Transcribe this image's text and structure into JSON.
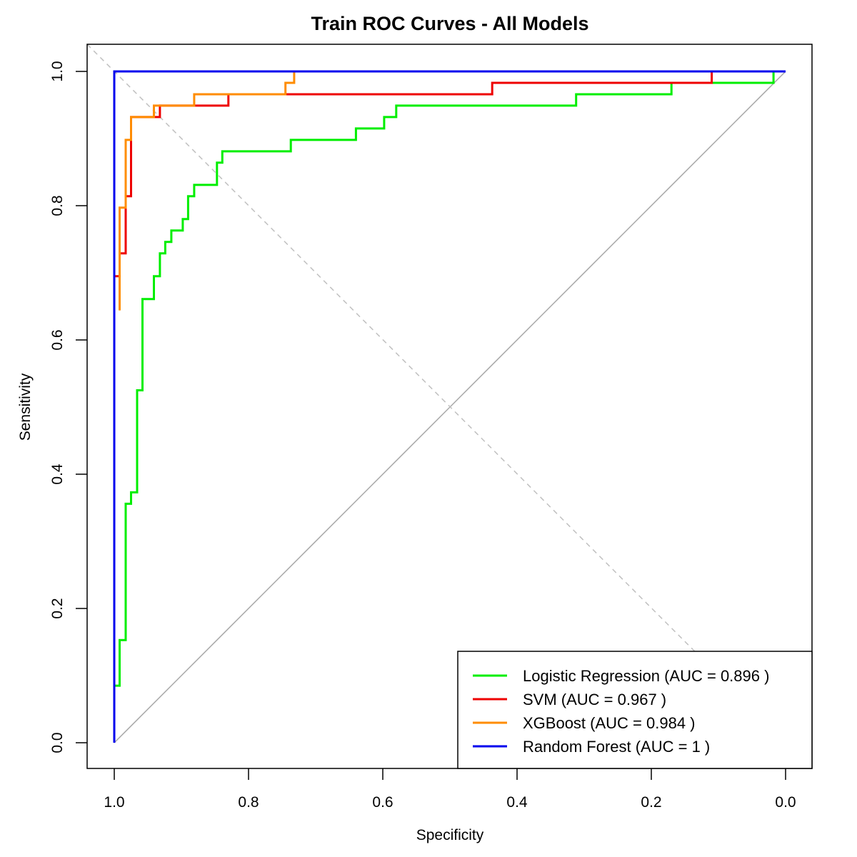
{
  "chart_data": {
    "type": "line",
    "title": "Train ROC Curves - All Models",
    "xlabel": "Specificity",
    "ylabel": "Sensitivity",
    "xlim": [
      1.0,
      0.0
    ],
    "ylim": [
      0.0,
      1.0
    ],
    "x_reversed": true,
    "xticks": [
      1.0,
      0.8,
      0.6,
      0.4,
      0.2,
      0.0
    ],
    "yticks": [
      0.0,
      0.2,
      0.4,
      0.6,
      0.8,
      1.0
    ],
    "xtick_labels": [
      "1.0",
      "0.8",
      "0.6",
      "0.4",
      "0.2",
      "0.0"
    ],
    "ytick_labels": [
      "0.0",
      "0.2",
      "0.4",
      "0.6",
      "0.8",
      "1.0"
    ],
    "grid": false,
    "legend_position": "bottom-right",
    "reference_line": {
      "points": [
        [
          1.0,
          0.0
        ],
        [
          0.0,
          1.0
        ]
      ],
      "color": "#a6a6a6"
    },
    "series": [
      {
        "name": "Logistic Regression (AUC = 0.896 )",
        "color": "#00ee00",
        "points": [
          [
            1.0,
            0.0
          ],
          [
            1.0,
            0.085
          ],
          [
            0.992,
            0.085
          ],
          [
            0.992,
            0.153
          ],
          [
            0.983,
            0.153
          ],
          [
            0.983,
            0.356
          ],
          [
            0.975,
            0.356
          ],
          [
            0.975,
            0.373
          ],
          [
            0.966,
            0.373
          ],
          [
            0.966,
            0.525
          ],
          [
            0.958,
            0.525
          ],
          [
            0.958,
            0.661
          ],
          [
            0.941,
            0.661
          ],
          [
            0.941,
            0.695
          ],
          [
            0.932,
            0.695
          ],
          [
            0.932,
            0.729
          ],
          [
            0.924,
            0.729
          ],
          [
            0.924,
            0.746
          ],
          [
            0.915,
            0.746
          ],
          [
            0.915,
            0.763
          ],
          [
            0.898,
            0.763
          ],
          [
            0.898,
            0.78
          ],
          [
            0.89,
            0.78
          ],
          [
            0.89,
            0.814
          ],
          [
            0.881,
            0.814
          ],
          [
            0.881,
            0.831
          ],
          [
            0.847,
            0.831
          ],
          [
            0.847,
            0.864
          ],
          [
            0.839,
            0.864
          ],
          [
            0.839,
            0.881
          ],
          [
            0.737,
            0.881
          ],
          [
            0.737,
            0.898
          ],
          [
            0.64,
            0.898
          ],
          [
            0.64,
            0.915
          ],
          [
            0.598,
            0.915
          ],
          [
            0.598,
            0.932
          ],
          [
            0.58,
            0.932
          ],
          [
            0.58,
            0.949
          ],
          [
            0.312,
            0.949
          ],
          [
            0.312,
            0.966
          ],
          [
            0.17,
            0.966
          ],
          [
            0.17,
            0.983
          ],
          [
            0.018,
            0.983
          ],
          [
            0.018,
            1.0
          ],
          [
            0.0,
            1.0
          ]
        ]
      },
      {
        "name": "SVM (AUC = 0.967 )",
        "color": "#ee0000",
        "points": [
          [
            1.0,
            0.695
          ],
          [
            0.992,
            0.695
          ],
          [
            0.992,
            0.729
          ],
          [
            0.983,
            0.729
          ],
          [
            0.983,
            0.814
          ],
          [
            0.975,
            0.814
          ],
          [
            0.975,
            0.932
          ],
          [
            0.932,
            0.932
          ],
          [
            0.932,
            0.949
          ],
          [
            0.83,
            0.949
          ],
          [
            0.83,
            0.966
          ],
          [
            0.437,
            0.966
          ],
          [
            0.437,
            0.983
          ],
          [
            0.11,
            0.983
          ],
          [
            0.11,
            1.0
          ],
          [
            0.0,
            1.0
          ]
        ]
      },
      {
        "name": "XGBoost (AUC = 0.984 )",
        "color": "#ff8c00",
        "points": [
          [
            0.992,
            0.644
          ],
          [
            0.992,
            0.797
          ],
          [
            0.983,
            0.797
          ],
          [
            0.983,
            0.898
          ],
          [
            0.975,
            0.898
          ],
          [
            0.975,
            0.932
          ],
          [
            0.941,
            0.932
          ],
          [
            0.941,
            0.949
          ],
          [
            0.881,
            0.949
          ],
          [
            0.881,
            0.966
          ],
          [
            0.745,
            0.966
          ],
          [
            0.745,
            0.983
          ],
          [
            0.732,
            0.983
          ],
          [
            0.732,
            1.0
          ],
          [
            0.0,
            1.0
          ]
        ]
      },
      {
        "name": "Random Forest (AUC = 1 )",
        "color": "#0000ee",
        "points": [
          [
            1.0,
            0.0
          ],
          [
            1.0,
            1.0
          ],
          [
            0.0,
            1.0
          ]
        ]
      }
    ]
  }
}
